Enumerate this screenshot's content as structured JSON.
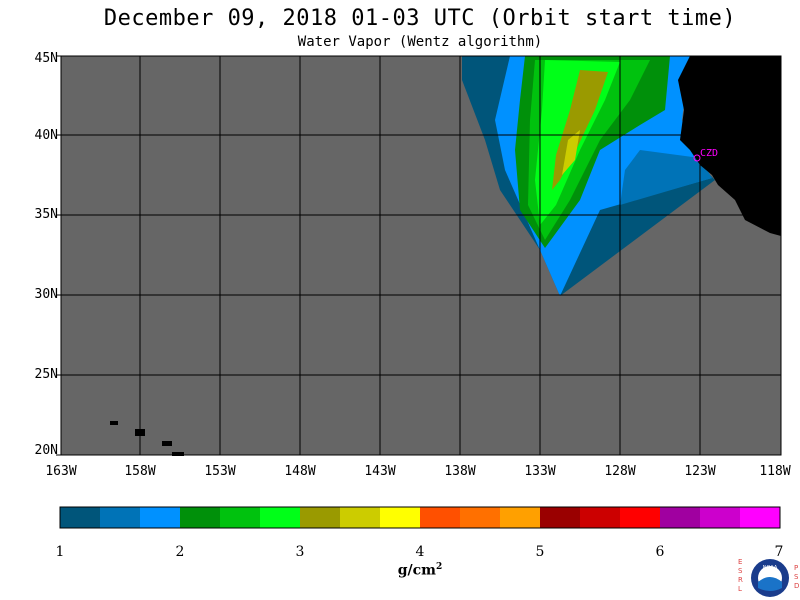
{
  "header": {
    "title": "December 09, 2018  01-03 UTC  (Orbit start time)",
    "subtitle": "Water Vapor (Wentz algorithm)"
  },
  "map": {
    "lat_labels": [
      "45N",
      "40N",
      "35N",
      "30N",
      "25N",
      "20N"
    ],
    "lon_labels": [
      "163W",
      "158W",
      "153W",
      "148W",
      "143W",
      "138W",
      "133W",
      "128W",
      "123W",
      "118W"
    ],
    "station_label": "CZD",
    "colors": {
      "ocean_nodata": "#666666",
      "land": "#000000",
      "grid": "#000000",
      "station": "#ff00ff"
    }
  },
  "colorbar": {
    "labels": [
      "1",
      "2",
      "3",
      "4",
      "5",
      "6",
      "7"
    ],
    "units": "g/cm",
    "units_sup": "2",
    "colors": [
      "#00557a",
      "#0073b7",
      "#0091ff",
      "#00900a",
      "#00c20e",
      "#00ff18",
      "#9a9a00",
      "#cccc00",
      "#ffff00",
      "#ff5000",
      "#ff7000",
      "#ffa000",
      "#9a0000",
      "#cc0000",
      "#ff0000",
      "#a000a0",
      "#cc00cc",
      "#ff00ff"
    ]
  },
  "logo": {
    "left_letters": "ESRL",
    "right_letters": "PSD",
    "center_text": "NOAA"
  }
}
